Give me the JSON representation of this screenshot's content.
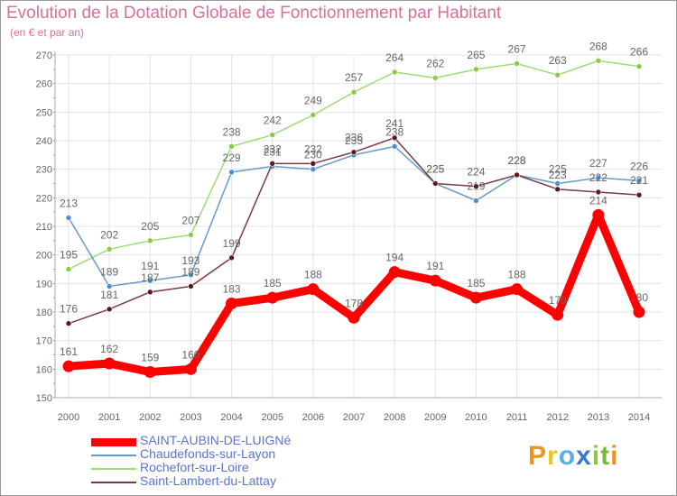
{
  "title": "Evolution de la Dotation Globale de Fonctionnement par Habitant",
  "subtitle": "(en € et par an)",
  "brand": {
    "letters": [
      "P",
      "r",
      "o",
      "x",
      "i",
      "t",
      "i"
    ],
    "colors": [
      "#e8961e",
      "#e8c81e",
      "#5ab0e0",
      "#3a78c8",
      "#8cc83c",
      "#7ab83c",
      "#e8961e"
    ]
  },
  "colors": {
    "axis": "#aaaaaa",
    "grid": "#e3e3e3",
    "tick_mark": "#e86a8c",
    "point_fill": "#9fd6ff"
  },
  "chart_data": {
    "type": "line",
    "title": "Evolution de la Dotation Globale de Fonctionnement par Habitant",
    "subtitle": "(en € et par an)",
    "xlabel": "",
    "ylabel": "",
    "ylim": [
      150,
      270
    ],
    "yticks": [
      150,
      160,
      170,
      180,
      190,
      200,
      210,
      220,
      230,
      240,
      250,
      260,
      270
    ],
    "grid": true,
    "legend": "bottom-left",
    "x": [
      "2000",
      "2001",
      "2002",
      "2003",
      "2004",
      "2005",
      "2006",
      "2007",
      "2008",
      "2009",
      "2010",
      "2011",
      "2012",
      "2013",
      "2014"
    ],
    "series": [
      {
        "name": "Rochefort-sur-Loire",
        "color": "#99dd77",
        "point": "#88cc44",
        "width": 1.5,
        "values": [
          195,
          202,
          205,
          207,
          238,
          242,
          249,
          257,
          264,
          262,
          265,
          267,
          263,
          268,
          266
        ],
        "labels": [
          "195",
          "202",
          "205",
          "207",
          "238",
          "242",
          "249",
          "257",
          "264",
          "262",
          "265",
          "267",
          "263",
          "268",
          "266"
        ]
      },
      {
        "name": "Chaudefonds-sur-Layon",
        "color": "#6699cc",
        "point": "#4a90cc",
        "width": 1.5,
        "values": [
          213,
          189,
          191,
          193,
          229,
          231,
          230,
          235,
          238,
          225,
          219,
          228,
          225,
          227,
          226
        ],
        "labels": [
          "213",
          "189",
          "191",
          "193",
          "229",
          "231",
          "230",
          "235",
          "238",
          "225",
          "219",
          "228",
          "225",
          "227",
          "226"
        ]
      },
      {
        "name": "Saint-Lambert-du-Lattay",
        "color": "#7a3a42",
        "point": "#5a1a22",
        "width": 1.5,
        "values": [
          176,
          181,
          187,
          189,
          199,
          232,
          232,
          236,
          241,
          225,
          224,
          228,
          223,
          222,
          221
        ],
        "labels": [
          "176",
          "181",
          "187",
          "189",
          "199",
          "232",
          "232",
          "236",
          "241",
          "225",
          "224",
          "228",
          "223",
          "222",
          "221"
        ]
      },
      {
        "name": "SAINT-AUBIN-DE-LUIGNé",
        "color": "#ff0000",
        "point": "#ff0000",
        "width": 9,
        "values": [
          161,
          162,
          159,
          160,
          183,
          185,
          188,
          178,
          194,
          191,
          185,
          188,
          179,
          214,
          180
        ],
        "labels": [
          "161",
          "162",
          "159",
          "160",
          "183",
          "185",
          "188",
          "178",
          "194",
          "191",
          "185",
          "188",
          "179",
          "214",
          "180"
        ]
      }
    ],
    "legend_order": [
      "SAINT-AUBIN-DE-LUIGNé",
      "Chaudefonds-sur-Layon",
      "Rochefort-sur-Loire",
      "Saint-Lambert-du-Lattay"
    ]
  }
}
